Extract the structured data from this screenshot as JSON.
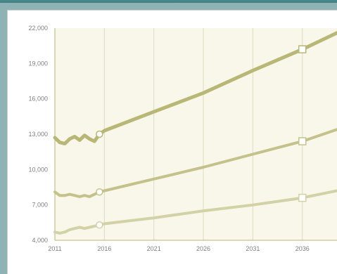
{
  "chart_data": {
    "type": "line",
    "title": "",
    "xlabel": "",
    "ylabel": "",
    "xlim": [
      2011,
      2039.5
    ],
    "ylim": [
      4000,
      22000
    ],
    "x_ticks": [
      "2011",
      "2016",
      "2021",
      "2026",
      "2031",
      "2036"
    ],
    "y_ticks": [
      "22,000",
      "19,000",
      "16,000",
      "13,000",
      "10,000",
      "7,000",
      "4,000"
    ],
    "grid": true,
    "colors": {
      "plot_bg": "#f8f7ea",
      "grid": "#dcdcc2",
      "axis": "#b8b46e",
      "series_top": "#b8b776",
      "series_mid": "#c4c28a",
      "series_low": "#d3d1a6"
    },
    "series": [
      {
        "name": "",
        "x": [
          2011,
          2011.5,
          2012,
          2012.5,
          2013,
          2013.5,
          2014,
          2014.5,
          2015,
          2015.5,
          2016,
          2021,
          2026,
          2031,
          2036,
          2039.5
        ],
        "values": [
          12700,
          12300,
          12200,
          12600,
          12800,
          12500,
          12900,
          12600,
          12400,
          13000,
          13300,
          14900,
          16500,
          18400,
          20200,
          21600
        ],
        "markers": [
          2015.5,
          2036
        ]
      },
      {
        "name": "",
        "x": [
          2011,
          2011.5,
          2012,
          2012.5,
          2013,
          2013.5,
          2014,
          2014.5,
          2015,
          2015.5,
          2016,
          2021,
          2026,
          2031,
          2036,
          2039.5
        ],
        "values": [
          8100,
          7800,
          7800,
          7900,
          7800,
          7700,
          7800,
          7700,
          7900,
          8100,
          8200,
          9200,
          10200,
          11300,
          12400,
          13400
        ],
        "markers": [
          2015.5,
          2036
        ]
      },
      {
        "name": "",
        "x": [
          2011,
          2011.5,
          2012,
          2012.5,
          2013,
          2013.5,
          2014,
          2014.5,
          2015,
          2015.5,
          2016,
          2021,
          2026,
          2031,
          2036,
          2039.5
        ],
        "values": [
          4700,
          4600,
          4700,
          4900,
          5000,
          5100,
          5000,
          5100,
          5200,
          5300,
          5400,
          5900,
          6500,
          7000,
          7600,
          8200
        ],
        "markers": [
          2015.5,
          2036
        ]
      }
    ]
  }
}
